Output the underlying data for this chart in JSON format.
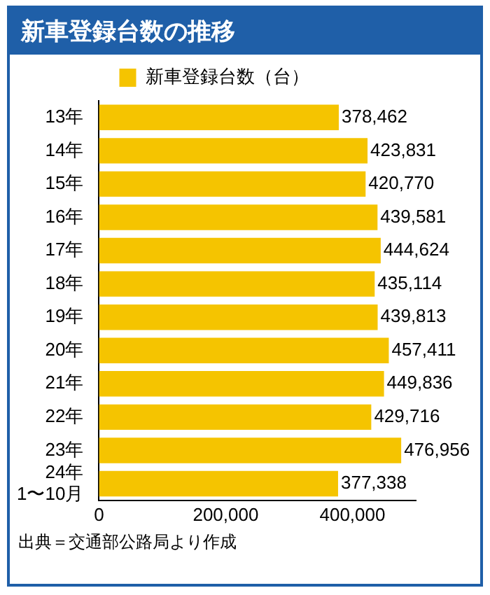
{
  "chart_data": {
    "type": "bar",
    "orientation": "horizontal",
    "title": "新車登録台数の推移",
    "categories": [
      "13年",
      "14年",
      "15年",
      "16年",
      "17年",
      "18年",
      "19年",
      "20年",
      "21年",
      "22年",
      "23年",
      "24年\n1〜10月"
    ],
    "series": [
      {
        "name": "新車登録台数（台）",
        "color": "#f5c400",
        "values": [
          378462,
          423831,
          420770,
          439581,
          444624,
          435114,
          439813,
          457411,
          449836,
          429716,
          476956,
          377338
        ]
      }
    ],
    "xlim": [
      0,
      500000
    ],
    "xticks": [
      {
        "value": 0,
        "label": "0"
      },
      {
        "value": 200000,
        "label": "200,000"
      },
      {
        "value": 400000,
        "label": "400,000"
      }
    ],
    "value_labels": [
      "378,462",
      "423,831",
      "420,770",
      "439,581",
      "444,624",
      "435,114",
      "439,813",
      "457,411",
      "449,836",
      "429,716",
      "476,956",
      "377,338"
    ],
    "legend": "top",
    "grid": false,
    "annotations": [
      "出典＝交通部公路局より作成"
    ]
  }
}
